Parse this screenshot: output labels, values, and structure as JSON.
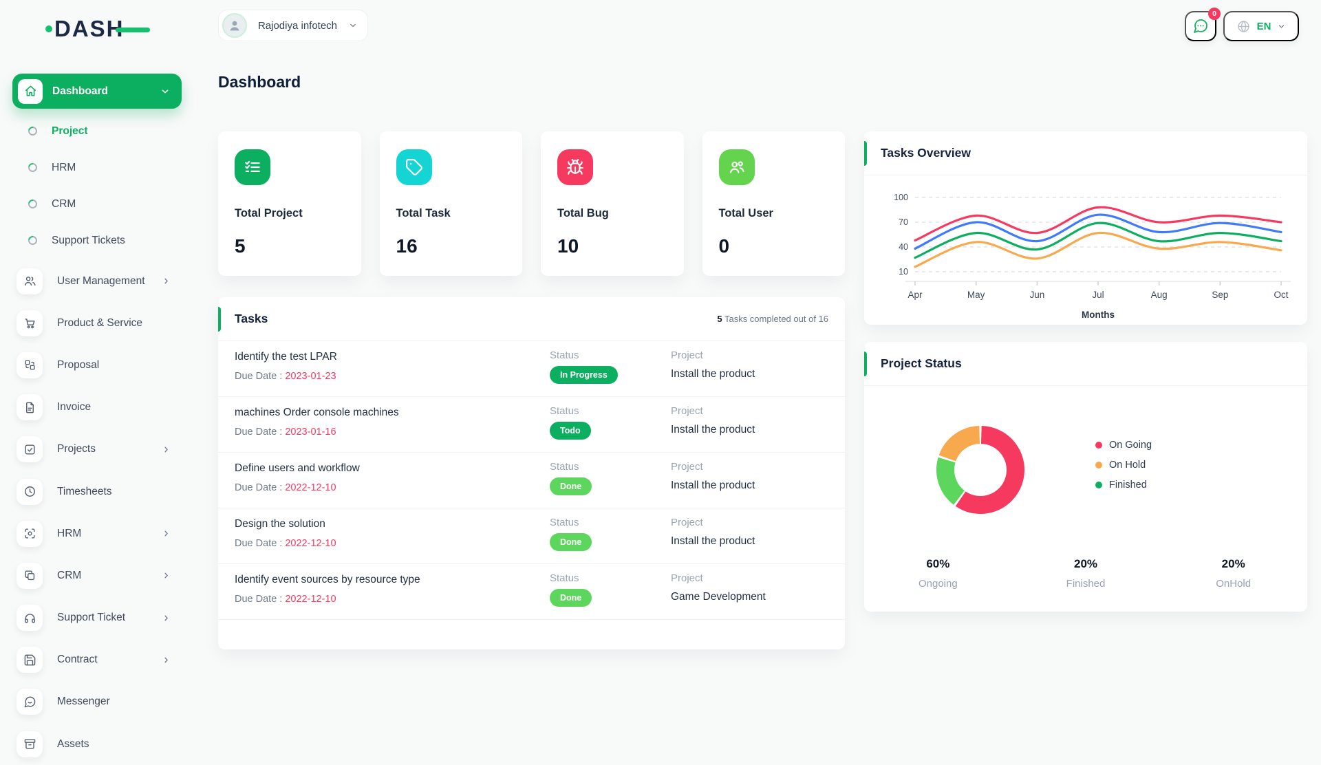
{
  "brand": {
    "name": "DASH"
  },
  "topbar": {
    "workspace": {
      "name": "Rajodiya infotech"
    },
    "chat": {
      "badge": "0"
    },
    "language": {
      "code": "EN"
    }
  },
  "page": {
    "title": "Dashboard"
  },
  "sidebar": {
    "dashboard": {
      "label": "Dashboard",
      "icon": "home"
    },
    "sub_items": [
      {
        "label": "Project",
        "active": true
      },
      {
        "label": "HRM",
        "active": false
      },
      {
        "label": "CRM",
        "active": false
      },
      {
        "label": "Support Tickets",
        "active": false
      }
    ],
    "items": [
      {
        "label": "User Management",
        "icon": "users",
        "chevron": true
      },
      {
        "label": "Product & Service",
        "icon": "cart",
        "chevron": false
      },
      {
        "label": "Proposal",
        "icon": "swap",
        "chevron": false
      },
      {
        "label": "Invoice",
        "icon": "file",
        "chevron": false
      },
      {
        "label": "Projects",
        "icon": "check-square",
        "chevron": true
      },
      {
        "label": "Timesheets",
        "icon": "clock",
        "chevron": false
      },
      {
        "label": "HRM",
        "icon": "focus",
        "chevron": true
      },
      {
        "label": "CRM",
        "icon": "squares",
        "chevron": true
      },
      {
        "label": "Support Ticket",
        "icon": "headphones",
        "chevron": true
      },
      {
        "label": "Contract",
        "icon": "save",
        "chevron": true
      },
      {
        "label": "Messenger",
        "icon": "message",
        "chevron": false
      },
      {
        "label": "Assets",
        "icon": "archive",
        "chevron": false
      }
    ]
  },
  "stats": [
    {
      "label": "Total Project",
      "value": "5",
      "icon": "list-checks",
      "color": "#0caf60"
    },
    {
      "label": "Total Task",
      "value": "16",
      "icon": "tag",
      "color": "#14d4d4"
    },
    {
      "label": "Total Bug",
      "value": "10",
      "icon": "bug",
      "color": "#f5395f"
    },
    {
      "label": "Total User",
      "value": "0",
      "icon": "users-group",
      "color": "#64d34e"
    }
  ],
  "tasks_panel": {
    "title": "Tasks",
    "summary_count": "5",
    "summary_text": "Tasks completed out of 16",
    "labels": {
      "status": "Status",
      "project": "Project",
      "due": "Due Date :"
    },
    "status_colors": {
      "In Progress": "#0caf60",
      "Todo": "#0caf60",
      "Done": "#5cd65c"
    },
    "rows": [
      {
        "title": "Identify the test LPAR",
        "due_date": "2023-01-23",
        "status": "In Progress",
        "project": "Install the product"
      },
      {
        "title": "machines Order console machines",
        "due_date": "2023-01-16",
        "status": "Todo",
        "project": "Install the product"
      },
      {
        "title": "Define users and workflow",
        "due_date": "2022-12-10",
        "status": "Done",
        "project": "Install the product"
      },
      {
        "title": "Design the solution",
        "due_date": "2022-12-10",
        "status": "Done",
        "project": "Install the product"
      },
      {
        "title": "Identify event sources by resource type",
        "due_date": "2022-12-10",
        "status": "Done",
        "project": "Game Development"
      }
    ]
  },
  "chart_data": [
    {
      "type": "line",
      "panel_title": "Tasks Overview",
      "x": [
        "Apr",
        "May",
        "Jun",
        "Jul",
        "Aug",
        "Sep",
        "Oct"
      ],
      "xlabel": "Months",
      "yticks": [
        10,
        40,
        70,
        100
      ],
      "ylim": [
        10,
        100
      ],
      "grid": "dashed-horizontal",
      "legend_position": "none",
      "series": [
        {
          "name": "orange",
          "color": "#f8a84d",
          "values": [
            16,
            46,
            26,
            57,
            38,
            46,
            36
          ]
        },
        {
          "name": "green",
          "color": "#0caf60",
          "values": [
            27,
            57,
            37,
            69,
            47,
            57,
            47
          ]
        },
        {
          "name": "blue",
          "color": "#3f7afc",
          "values": [
            38,
            70,
            47,
            79,
            58,
            69,
            58
          ]
        },
        {
          "name": "pink",
          "color": "#f5395f",
          "values": [
            48,
            78,
            57,
            88,
            70,
            78,
            70
          ]
        }
      ]
    },
    {
      "type": "donut",
      "panel_title": "Project Status",
      "segments": [
        {
          "label": "On Going",
          "pct": 60,
          "color": "#f5395f"
        },
        {
          "label": "Finished",
          "pct": 20,
          "color": "#5cd65c"
        },
        {
          "label": "On Hold",
          "pct": 20,
          "color": "#f8a84d"
        }
      ],
      "legend": [
        {
          "label": "On Going",
          "color": "#f5395f"
        },
        {
          "label": "On Hold",
          "color": "#f8a84d"
        },
        {
          "label": "Finished",
          "color": "#0caf60"
        }
      ],
      "stats": [
        {
          "value": "60%",
          "label": "Ongoing"
        },
        {
          "value": "20%",
          "label": "Finished"
        },
        {
          "value": "20%",
          "label": "OnHold"
        }
      ]
    }
  ]
}
